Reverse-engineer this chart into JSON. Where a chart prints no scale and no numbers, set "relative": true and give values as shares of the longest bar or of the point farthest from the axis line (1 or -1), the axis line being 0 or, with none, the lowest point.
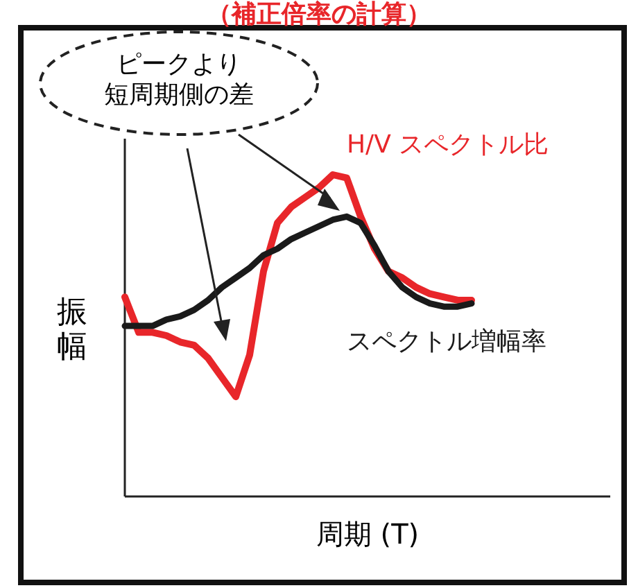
{
  "chart_data": {
    "type": "line",
    "relative": true,
    "title": "（補正倍率の計算）",
    "xlabel": "周期 (T)",
    "ylabel": "振幅",
    "annotations": [
      "ピークより短周期側の差"
    ],
    "categories": [
      null,
      null,
      null,
      null,
      null,
      null,
      null,
      null,
      null,
      null,
      null,
      null,
      null,
      null,
      null,
      null,
      null,
      null,
      null,
      null,
      null,
      null,
      null,
      null,
      null,
      null
    ],
    "series": [
      {
        "name": "H/V スペクトル比",
        "color": "#e8262a",
        "values": [
          0.62,
          0.51,
          0.51,
          0.5,
          0.48,
          0.47,
          0.43,
          0.37,
          0.31,
          0.44,
          0.7,
          0.85,
          0.9,
          0.93,
          0.96,
          1,
          0.99,
          0.87,
          0.77,
          0.7,
          0.68,
          0.65,
          0.63,
          0.62,
          0.61,
          0.61
        ]
      },
      {
        "name": "スペクトル増幅率",
        "color": "#1a1a1a",
        "values": [
          0.53,
          0.53,
          0.53,
          0.55,
          0.56,
          0.58,
          0.61,
          0.65,
          0.68,
          0.71,
          0.75,
          0.77,
          0.8,
          0.82,
          0.84,
          0.86,
          0.87,
          0.85,
          0.78,
          0.7,
          0.65,
          0.62,
          0.6,
          0.59,
          0.59,
          0.6
        ]
      }
    ],
    "line_style": "solid"
  }
}
